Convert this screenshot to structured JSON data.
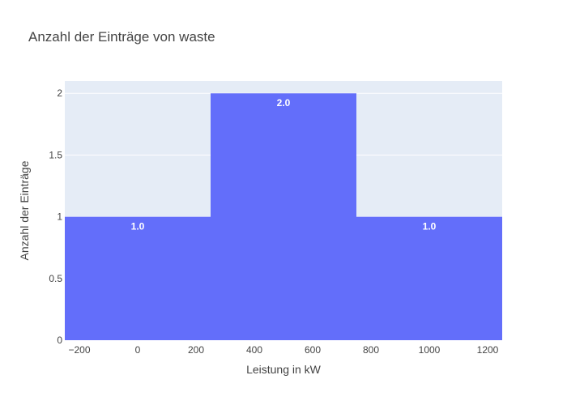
{
  "chart_data": {
    "type": "bar",
    "title": "Anzahl der Einträge von waste",
    "xlabel": "Leistung in kW",
    "ylabel": "Anzahl der Einträge",
    "xlim": [
      -250,
      1250
    ],
    "ylim": [
      0,
      2.1
    ],
    "x_ticks": [
      -200,
      0,
      200,
      400,
      600,
      800,
      1000,
      1200
    ],
    "x_tick_labels": [
      "−200",
      "0",
      "200",
      "400",
      "600",
      "800",
      "1000",
      "1200"
    ],
    "y_ticks": [
      0,
      0.5,
      1,
      1.5,
      2
    ],
    "y_tick_labels": [
      "0",
      "0.5",
      "1",
      "1.5",
      "2"
    ],
    "bins": [
      {
        "x0": -250,
        "x1": 250,
        "value": 1,
        "label": "1.0"
      },
      {
        "x0": 250,
        "x1": 750,
        "value": 2,
        "label": "2.0"
      },
      {
        "x0": 750,
        "x1": 1250,
        "value": 1,
        "label": "1.0"
      }
    ],
    "grid": true,
    "colors": {
      "bar": "#636efa",
      "plot_background": "#e5ecf6",
      "grid": "#ffffff",
      "text": "#444444"
    }
  }
}
